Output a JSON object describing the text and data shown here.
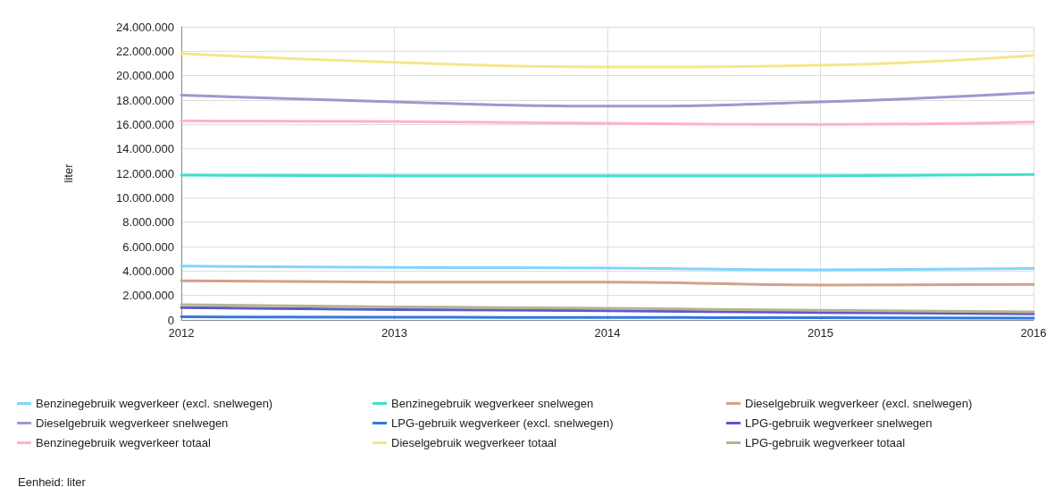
{
  "chart_data": {
    "type": "line",
    "ylabel": "liter",
    "x": [
      2012,
      2013,
      2014,
      2015,
      2016
    ],
    "xlim": [
      2012,
      2016
    ],
    "xticks": [
      2012,
      2013,
      2014,
      2015,
      2016
    ],
    "ylim": [
      0,
      24000000
    ],
    "yticks": [
      {
        "value": 0,
        "label": "0"
      },
      {
        "value": 2000000,
        "label": "2.000.000"
      },
      {
        "value": 4000000,
        "label": "4.000.000"
      },
      {
        "value": 6000000,
        "label": "6.000.000"
      },
      {
        "value": 8000000,
        "label": "8.000.000"
      },
      {
        "value": 10000000,
        "label": "10.000.000"
      },
      {
        "value": 12000000,
        "label": "12.000.000"
      },
      {
        "value": 14000000,
        "label": "14.000.000"
      },
      {
        "value": 16000000,
        "label": "16.000.000"
      },
      {
        "value": 18000000,
        "label": "18.000.000"
      },
      {
        "value": 20000000,
        "label": "20.000.000"
      },
      {
        "value": 22000000,
        "label": "22.000.000"
      },
      {
        "value": 24000000,
        "label": "24.000.000"
      }
    ],
    "grid": true,
    "legend": "bottom",
    "marker": "none",
    "line_style": "solid",
    "annotations": [
      "Eenheid: liter"
    ],
    "series": [
      {
        "name": "Benzinegebruik wegverkeer (excl. snelwegen)",
        "color": "#80d4ff",
        "values": [
          4400000,
          4300000,
          4250000,
          4100000,
          4200000
        ]
      },
      {
        "name": "Benzinegebruik wegverkeer snelwegen",
        "color": "#40e0d0",
        "values": [
          11850000,
          11800000,
          11800000,
          11800000,
          11900000
        ]
      },
      {
        "name": "Dieselgebruik wegverkeer (excl. snelwegen)",
        "color": "#d4a08a",
        "values": [
          3200000,
          3100000,
          3100000,
          2850000,
          2900000
        ]
      },
      {
        "name": "Dieselgebruik wegverkeer snelwegen",
        "color": "#9a9ad0",
        "values": [
          18400000,
          17850000,
          17500000,
          17850000,
          18600000
        ]
      },
      {
        "name": "LPG-gebruik wegverkeer (excl. snelwegen)",
        "color": "#2f78e0",
        "values": [
          250000,
          220000,
          200000,
          180000,
          150000
        ]
      },
      {
        "name": "LPG-gebruik wegverkeer snelwegen",
        "color": "#5a5ad0",
        "values": [
          1000000,
          850000,
          750000,
          600000,
          500000
        ]
      },
      {
        "name": "Benzinegebruik wegverkeer totaal",
        "color": "#ffb0d0",
        "values": [
          16300000,
          16250000,
          16100000,
          16000000,
          16200000
        ]
      },
      {
        "name": "Dieselgebruik wegverkeer totaal",
        "color": "#f5e68c",
        "values": [
          21800000,
          21100000,
          20700000,
          20850000,
          21650000
        ]
      },
      {
        "name": "LPG-gebruik wegverkeer totaal",
        "color": "#b8b48c",
        "values": [
          1250000,
          1070000,
          950000,
          780000,
          650000
        ]
      }
    ]
  }
}
